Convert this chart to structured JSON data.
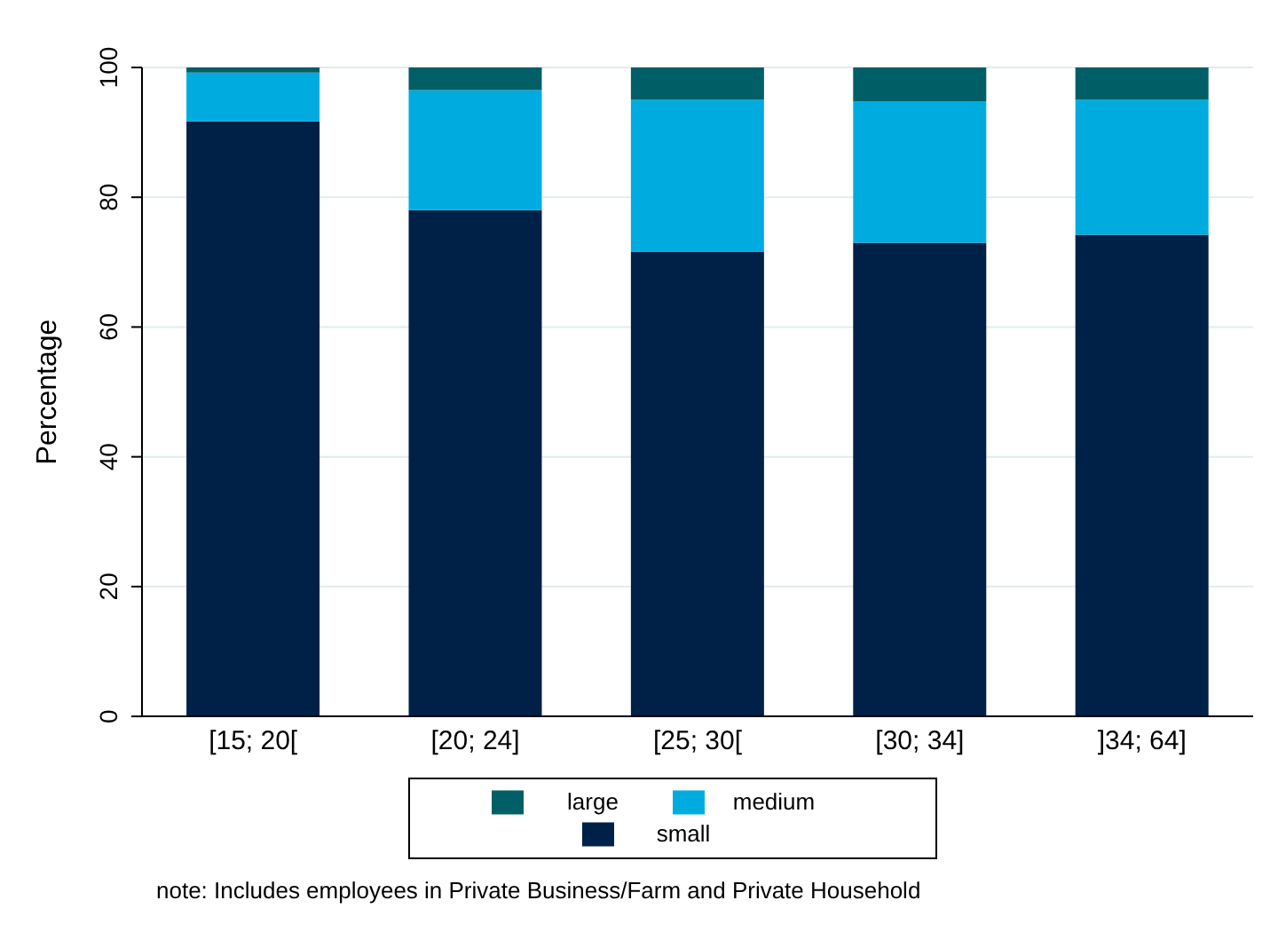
{
  "chart_data": {
    "type": "bar",
    "stacked": true,
    "ylabel": "Percentage",
    "categories": [
      "[15; 20[",
      "[20; 24]",
      "[25; 30[",
      "[30; 34]",
      "]34; 64]"
    ],
    "series": [
      {
        "name": "small",
        "color": "#002147",
        "values": [
          91.7,
          78.0,
          71.6,
          73.0,
          74.2
        ]
      },
      {
        "name": "medium",
        "color": "#00acdf",
        "values": [
          7.5,
          18.5,
          23.4,
          21.8,
          20.8
        ]
      },
      {
        "name": "large",
        "color": "#005f66",
        "values": [
          0.8,
          3.5,
          5.0,
          5.2,
          5.0
        ]
      }
    ],
    "ylim": [
      0,
      100
    ],
    "yticks": [
      0,
      20,
      40,
      60,
      80,
      100
    ],
    "grid": "y",
    "legend": "bottom",
    "annotations": [
      "note: Includes employees in Private Business/Farm and Private Household"
    ]
  }
}
